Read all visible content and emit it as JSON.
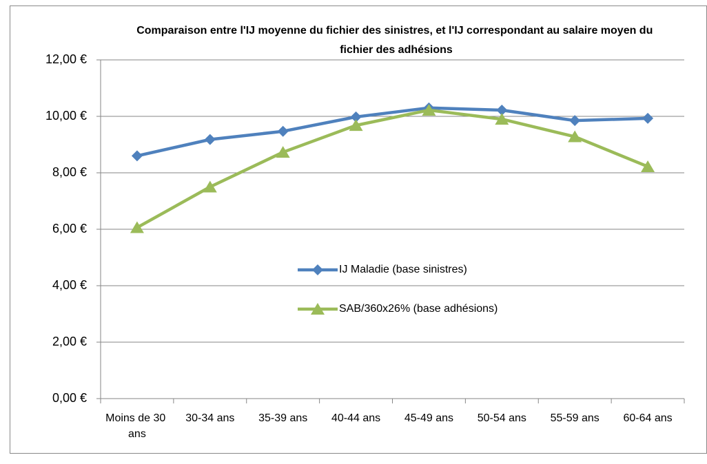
{
  "chart_data": {
    "type": "line",
    "title": "Comparaison entre l'IJ moyenne du fichier des sinistres, et l'IJ correspondant au salaire moyen du fichier des adhésions",
    "categories": [
      "Moins de 30 ans",
      "30-34 ans",
      "35-39 ans",
      "40-44 ans",
      "45-49 ans",
      "50-54 ans",
      "55-59 ans",
      "60-64 ans"
    ],
    "series": [
      {
        "name": "IJ Maladie (base sinistres)",
        "color": "#4f81bd",
        "marker": "diamond",
        "values": [
          8.6,
          9.18,
          9.47,
          9.98,
          10.3,
          10.22,
          9.85,
          9.93
        ]
      },
      {
        "name": "SAB/360x26% (base adhésions)",
        "color": "#9bbb59",
        "marker": "triangle",
        "values": [
          6.06,
          7.5,
          8.73,
          9.68,
          10.22,
          9.9,
          9.28,
          8.22
        ]
      }
    ],
    "ylim": [
      0,
      12
    ],
    "yticks": [
      {
        "value": 0,
        "label": "0,00 €"
      },
      {
        "value": 2,
        "label": "2,00 €"
      },
      {
        "value": 4,
        "label": "4,00 €"
      },
      {
        "value": 6,
        "label": "6,00 €"
      },
      {
        "value": 8,
        "label": "8,00 €"
      },
      {
        "value": 10,
        "label": "10,00 €"
      },
      {
        "value": 12,
        "label": "12,00 €"
      }
    ],
    "grid": true,
    "legend": "center"
  }
}
